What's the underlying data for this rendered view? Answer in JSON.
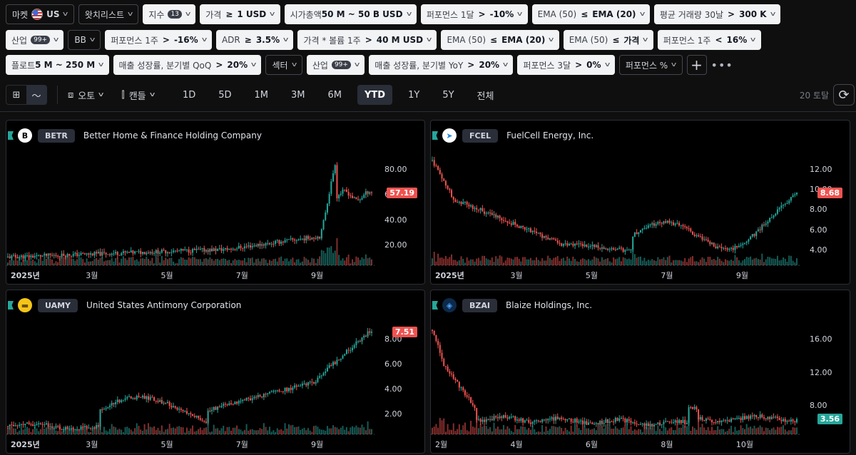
{
  "filters_row1": [
    {
      "label": "마켓",
      "flag": true,
      "value": "US",
      "dark": true
    },
    {
      "label": "왓치리스트",
      "dark": true
    },
    {
      "label": "지수",
      "badge": "13"
    },
    {
      "label": "가격",
      "op": "≥",
      "value": "1 USD"
    },
    {
      "label": "시가총액",
      "value": "50 M ~ 50 B USD"
    },
    {
      "label": "퍼포먼스 1달",
      "op": ">",
      "value": "-10%"
    },
    {
      "label": "EMA (50)",
      "op": "≤",
      "value": "EMA (20)"
    },
    {
      "label": "평균 거래량 30날",
      "op": ">",
      "value": "300 K"
    }
  ],
  "filters_row2": [
    {
      "label": "산업",
      "badge": "99+"
    },
    {
      "label": "BB",
      "dark": true
    },
    {
      "label": "퍼포먼스 1주",
      "op": ">",
      "value": "-16%"
    },
    {
      "label": "ADR",
      "op": "≥",
      "value": "3.5%"
    },
    {
      "label": "가격 * 볼륨 1주",
      "op": ">",
      "value": "40 M USD"
    },
    {
      "label": "EMA (50)",
      "op": "≤",
      "value": "EMA (20)"
    },
    {
      "label": "EMA (50)",
      "op": "≤",
      "value": "가격"
    },
    {
      "label": "퍼포먼스 1주",
      "op": "<",
      "value": "16%"
    }
  ],
  "filters_row3": [
    {
      "label": "플로트",
      "value": "5 M ~ 250 M"
    },
    {
      "label": "매출 성장률, 분기별 QoQ",
      "op": ">",
      "value": "20%"
    },
    {
      "label": "섹터",
      "dark": true
    },
    {
      "label": "산업",
      "badge": "99+"
    },
    {
      "label": "매출 성장률, 분기별 YoY",
      "op": ">",
      "value": "20%"
    },
    {
      "label": "퍼포먼스 3달",
      "op": ">",
      "value": "0%"
    },
    {
      "label": "퍼포먼스 %",
      "dark": true
    }
  ],
  "toolbar": {
    "scale_label": "오토",
    "chart_type_label": "캔들",
    "ranges": [
      "1D",
      "5D",
      "1M",
      "3M",
      "6M",
      "YTD",
      "1Y",
      "5Y",
      "전체"
    ],
    "active_range": "YTD",
    "total": "20 토탈"
  },
  "colors": {
    "up": "#26a69a",
    "down": "#ef5350",
    "accent": "#2962ff"
  },
  "charts": [
    {
      "ticker": "BETR",
      "name": "Better Home & Finance Holding Company",
      "logo": "B",
      "logo_bg": "#ffffff",
      "logo_fg": "#000000",
      "price": "57.19",
      "price_dir": "down",
      "y_ticks": [
        "80.00",
        "60.00",
        "40.00",
        "20.00"
      ],
      "x_ticks": [
        "2025년",
        "3월",
        "5월",
        "7월",
        "9월"
      ]
    },
    {
      "ticker": "FCEL",
      "name": "FuelCell Energy, Inc.",
      "logo": "➤",
      "logo_bg": "#ffffff",
      "logo_fg": "#1e88e5",
      "price": "8.68",
      "price_dir": "down",
      "y_ticks": [
        "12.00",
        "10.00",
        "8.00",
        "6.00",
        "4.00"
      ],
      "x_ticks": [
        "2025년",
        "3월",
        "5월",
        "7월",
        "9월"
      ]
    },
    {
      "ticker": "UAMY",
      "name": "United States Antimony Corporation",
      "logo": "▬",
      "logo_bg": "#f5c518",
      "logo_fg": "#6b4f00",
      "price": "7.51",
      "price_dir": "down",
      "y_ticks": [
        "8.00",
        "6.00",
        "4.00",
        "2.00"
      ],
      "x_ticks": [
        "2025년",
        "3월",
        "5월",
        "7월",
        "9월"
      ]
    },
    {
      "ticker": "BZAI",
      "name": "Blaize Holdings, Inc.",
      "logo": "◈",
      "logo_bg": "#0d2a4a",
      "logo_fg": "#4fa3ff",
      "price": "3.56",
      "price_dir": "up",
      "y_ticks": [
        "16.00",
        "12.00",
        "8.00"
      ],
      "x_ticks": [
        "2월",
        "4월",
        "6월",
        "8월",
        "10월"
      ]
    }
  ]
}
